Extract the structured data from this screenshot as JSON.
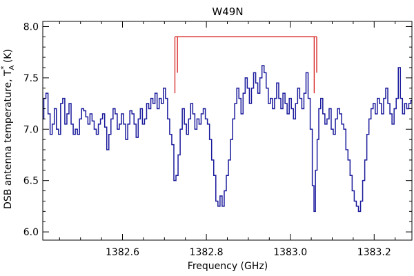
{
  "chart_data": {
    "type": "line",
    "title": "W49N",
    "xlabel": "Frequency (GHz)",
    "ylabel": "DSB antenna temperature, T",
    "ylabel_sub": "A",
    "ylabel_sup": "*",
    "ylabel_unit": " (K)",
    "xlim": [
      1382.41,
      1383.29
    ],
    "ylim": [
      5.92,
      8.05
    ],
    "xticks": [
      1382.6,
      1382.8,
      1383.0,
      1383.2
    ],
    "xtick_labels": [
      "1382.6",
      "1382.8",
      "1383.0",
      "1383.2"
    ],
    "yticks": [
      6.0,
      6.5,
      7.0,
      7.5,
      8.0
    ],
    "ytick_labels": [
      "6.0",
      "6.5",
      "7.0",
      "7.5",
      "8.0"
    ],
    "grid": false,
    "line_color": "#1a1a9c",
    "marker_color": "#d62020",
    "series": [
      {
        "values": [
          [
            1382.41,
            7.1
          ],
          [
            1382.415,
            7.3
          ],
          [
            1382.42,
            7.35
          ],
          [
            1382.425,
            7.15
          ],
          [
            1382.43,
            6.95
          ],
          [
            1382.435,
            7.05
          ],
          [
            1382.44,
            7.2
          ],
          [
            1382.445,
            7.0
          ],
          [
            1382.45,
            6.95
          ],
          [
            1382.455,
            7.25
          ],
          [
            1382.46,
            7.3
          ],
          [
            1382.465,
            7.05
          ],
          [
            1382.47,
            7.15
          ],
          [
            1382.475,
            7.25
          ],
          [
            1382.48,
            7.05
          ],
          [
            1382.485,
            6.95
          ],
          [
            1382.49,
            7.0
          ],
          [
            1382.495,
            6.95
          ],
          [
            1382.5,
            7.1
          ],
          [
            1382.505,
            7.2
          ],
          [
            1382.51,
            7.18
          ],
          [
            1382.515,
            7.12
          ],
          [
            1382.52,
            7.05
          ],
          [
            1382.525,
            7.15
          ],
          [
            1382.53,
            7.08
          ],
          [
            1382.535,
            7.0
          ],
          [
            1382.54,
            6.95
          ],
          [
            1382.545,
            7.05
          ],
          [
            1382.55,
            7.1
          ],
          [
            1382.555,
            7.15
          ],
          [
            1382.56,
            7.02
          ],
          [
            1382.565,
            6.8
          ],
          [
            1382.57,
            6.95
          ],
          [
            1382.575,
            7.1
          ],
          [
            1382.58,
            7.2
          ],
          [
            1382.585,
            7.15
          ],
          [
            1382.59,
            7.0
          ],
          [
            1382.595,
            7.05
          ],
          [
            1382.6,
            7.15
          ],
          [
            1382.605,
            7.05
          ],
          [
            1382.61,
            6.9
          ],
          [
            1382.615,
            7.05
          ],
          [
            1382.62,
            7.18
          ],
          [
            1382.625,
            7.15
          ],
          [
            1382.63,
            7.05
          ],
          [
            1382.635,
            6.92
          ],
          [
            1382.64,
            7.1
          ],
          [
            1382.645,
            7.2
          ],
          [
            1382.65,
            7.05
          ],
          [
            1382.655,
            7.1
          ],
          [
            1382.66,
            7.25
          ],
          [
            1382.665,
            7.2
          ],
          [
            1382.67,
            7.3
          ],
          [
            1382.675,
            7.25
          ],
          [
            1382.68,
            7.35
          ],
          [
            1382.685,
            7.2
          ],
          [
            1382.69,
            7.3
          ],
          [
            1382.695,
            7.25
          ],
          [
            1382.7,
            7.4
          ],
          [
            1382.705,
            7.3
          ],
          [
            1382.71,
            7.1
          ],
          [
            1382.715,
            6.95
          ],
          [
            1382.72,
            6.85
          ],
          [
            1382.725,
            6.5
          ],
          [
            1382.73,
            6.55
          ],
          [
            1382.735,
            6.75
          ],
          [
            1382.74,
            7.0
          ],
          [
            1382.745,
            7.2
          ],
          [
            1382.75,
            7.05
          ],
          [
            1382.755,
            6.95
          ],
          [
            1382.76,
            7.1
          ],
          [
            1382.765,
            7.25
          ],
          [
            1382.77,
            7.15
          ],
          [
            1382.775,
            7.0
          ],
          [
            1382.78,
            7.1
          ],
          [
            1382.785,
            7.05
          ],
          [
            1382.79,
            7.15
          ],
          [
            1382.795,
            7.2
          ],
          [
            1382.8,
            7.1
          ],
          [
            1382.805,
            7.05
          ],
          [
            1382.81,
            6.9
          ],
          [
            1382.815,
            6.7
          ],
          [
            1382.82,
            6.55
          ],
          [
            1382.825,
            6.3
          ],
          [
            1382.83,
            6.25
          ],
          [
            1382.835,
            6.35
          ],
          [
            1382.84,
            6.25
          ],
          [
            1382.845,
            6.4
          ],
          [
            1382.85,
            6.55
          ],
          [
            1382.855,
            6.7
          ],
          [
            1382.86,
            6.9
          ],
          [
            1382.865,
            7.1
          ],
          [
            1382.87,
            7.25
          ],
          [
            1382.875,
            7.4
          ],
          [
            1382.88,
            7.3
          ],
          [
            1382.885,
            7.15
          ],
          [
            1382.89,
            7.35
          ],
          [
            1382.895,
            7.5
          ],
          [
            1382.9,
            7.4
          ],
          [
            1382.905,
            7.25
          ],
          [
            1382.91,
            7.4
          ],
          [
            1382.915,
            7.55
          ],
          [
            1382.92,
            7.45
          ],
          [
            1382.925,
            7.35
          ],
          [
            1382.93,
            7.5
          ],
          [
            1382.935,
            7.62
          ],
          [
            1382.94,
            7.55
          ],
          [
            1382.945,
            7.4
          ],
          [
            1382.95,
            7.25
          ],
          [
            1382.955,
            7.3
          ],
          [
            1382.96,
            7.2
          ],
          [
            1382.965,
            7.3
          ],
          [
            1382.97,
            7.45
          ],
          [
            1382.975,
            7.3
          ],
          [
            1382.98,
            7.2
          ],
          [
            1382.985,
            7.35
          ],
          [
            1382.99,
            7.25
          ],
          [
            1382.995,
            7.15
          ],
          [
            1383.0,
            7.3
          ],
          [
            1383.005,
            7.2
          ],
          [
            1383.01,
            7.1
          ],
          [
            1383.015,
            7.25
          ],
          [
            1383.02,
            7.4
          ],
          [
            1383.025,
            7.3
          ],
          [
            1383.03,
            7.2
          ],
          [
            1383.035,
            7.35
          ],
          [
            1383.04,
            7.55
          ],
          [
            1383.045,
            7.3
          ],
          [
            1383.05,
            7.0
          ],
          [
            1383.055,
            6.45
          ],
          [
            1383.058,
            6.2
          ],
          [
            1383.062,
            6.6
          ],
          [
            1383.066,
            6.9
          ],
          [
            1383.07,
            7.2
          ],
          [
            1383.075,
            7.3
          ],
          [
            1383.08,
            7.15
          ],
          [
            1383.085,
            7.05
          ],
          [
            1383.09,
            7.1
          ],
          [
            1383.095,
            7.2
          ],
          [
            1383.1,
            7.0
          ],
          [
            1383.105,
            6.95
          ],
          [
            1383.11,
            7.1
          ],
          [
            1383.115,
            7.2
          ],
          [
            1383.12,
            7.15
          ],
          [
            1383.125,
            7.05
          ],
          [
            1383.13,
            7.0
          ],
          [
            1383.135,
            6.8
          ],
          [
            1383.14,
            6.7
          ],
          [
            1383.145,
            6.55
          ],
          [
            1383.15,
            6.4
          ],
          [
            1383.155,
            6.3
          ],
          [
            1383.16,
            6.25
          ],
          [
            1383.165,
            6.2
          ],
          [
            1383.17,
            6.3
          ],
          [
            1383.175,
            6.5
          ],
          [
            1383.18,
            6.7
          ],
          [
            1383.185,
            6.95
          ],
          [
            1383.19,
            7.1
          ],
          [
            1383.195,
            7.2
          ],
          [
            1383.2,
            7.25
          ],
          [
            1383.205,
            7.15
          ],
          [
            1383.21,
            7.3
          ],
          [
            1383.215,
            7.25
          ],
          [
            1383.22,
            7.15
          ],
          [
            1383.225,
            7.3
          ],
          [
            1383.23,
            7.4
          ],
          [
            1383.235,
            7.25
          ],
          [
            1383.24,
            7.15
          ],
          [
            1383.245,
            7.05
          ],
          [
            1383.25,
            7.2
          ],
          [
            1383.255,
            7.3
          ],
          [
            1383.26,
            7.6
          ],
          [
            1383.265,
            7.3
          ],
          [
            1383.27,
            7.15
          ],
          [
            1383.275,
            7.25
          ],
          [
            1383.28,
            7.2
          ],
          [
            1383.285,
            7.25
          ],
          [
            1383.29,
            7.28
          ]
        ]
      }
    ],
    "markers": {
      "y_top": 7.9,
      "groups": [
        {
          "lines": [
            {
              "x": 1382.725,
              "y_bottom": 7.35
            },
            {
              "x": 1382.731,
              "y_bottom": 7.55
            }
          ]
        },
        {
          "lines": [
            {
              "x": 1383.057,
              "y_bottom": 7.35
            },
            {
              "x": 1383.063,
              "y_bottom": 7.55
            }
          ]
        }
      ]
    }
  }
}
